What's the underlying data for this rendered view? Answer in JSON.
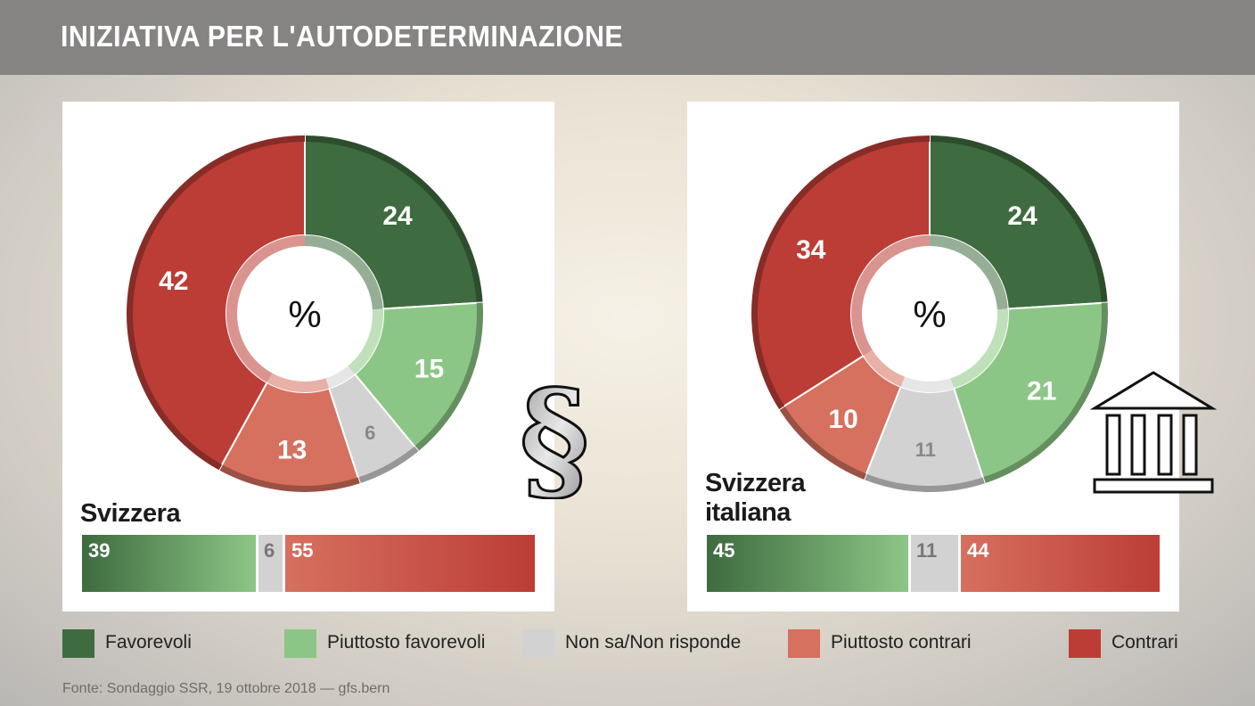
{
  "header": {
    "title": "INIZIATIVA PER L'AUTODETERMINAZIONE"
  },
  "colors": {
    "favorevoli": "#3e6b3f",
    "piuttosto_favorevoli": "#8cc686",
    "non_sa": "#d2d2d2",
    "piuttosto_contrari": "#d6705f",
    "contrari": "#bc3d36"
  },
  "icons": {
    "section": "section-sign-icon",
    "building": "parliament-building-icon"
  },
  "chart_data": [
    {
      "type": "pie",
      "title": "Svizzera",
      "center_label": "%",
      "categories": [
        "Favorevoli",
        "Piuttosto favorevoli",
        "Non sa/Non risponde",
        "Piuttosto contrari",
        "Contrari"
      ],
      "values": [
        24,
        15,
        6,
        13,
        42
      ],
      "summary_bar": {
        "labels": [
          "39",
          "6",
          "55"
        ],
        "values": [
          39,
          6,
          55
        ]
      }
    },
    {
      "type": "pie",
      "title": "Svizzera italiana",
      "title_lines": [
        "Svizzera",
        "italiana"
      ],
      "center_label": "%",
      "categories": [
        "Favorevoli",
        "Piuttosto favorevoli",
        "Non sa/Non risponde",
        "Piuttosto contrari",
        "Contrari"
      ],
      "values": [
        24,
        21,
        11,
        10,
        34
      ],
      "summary_bar": {
        "labels": [
          "45",
          "11",
          "44"
        ],
        "values": [
          45,
          11,
          44
        ]
      }
    }
  ],
  "legend": [
    {
      "label": "Favorevoli"
    },
    {
      "label": "Piuttosto favorevoli"
    },
    {
      "label": "Non sa/Non risponde"
    },
    {
      "label": "Piuttosto contrari"
    },
    {
      "label": "Contrari"
    }
  ],
  "source": "Fonte: Sondaggio SSR, 19 ottobre 2018 — gfs.bern"
}
